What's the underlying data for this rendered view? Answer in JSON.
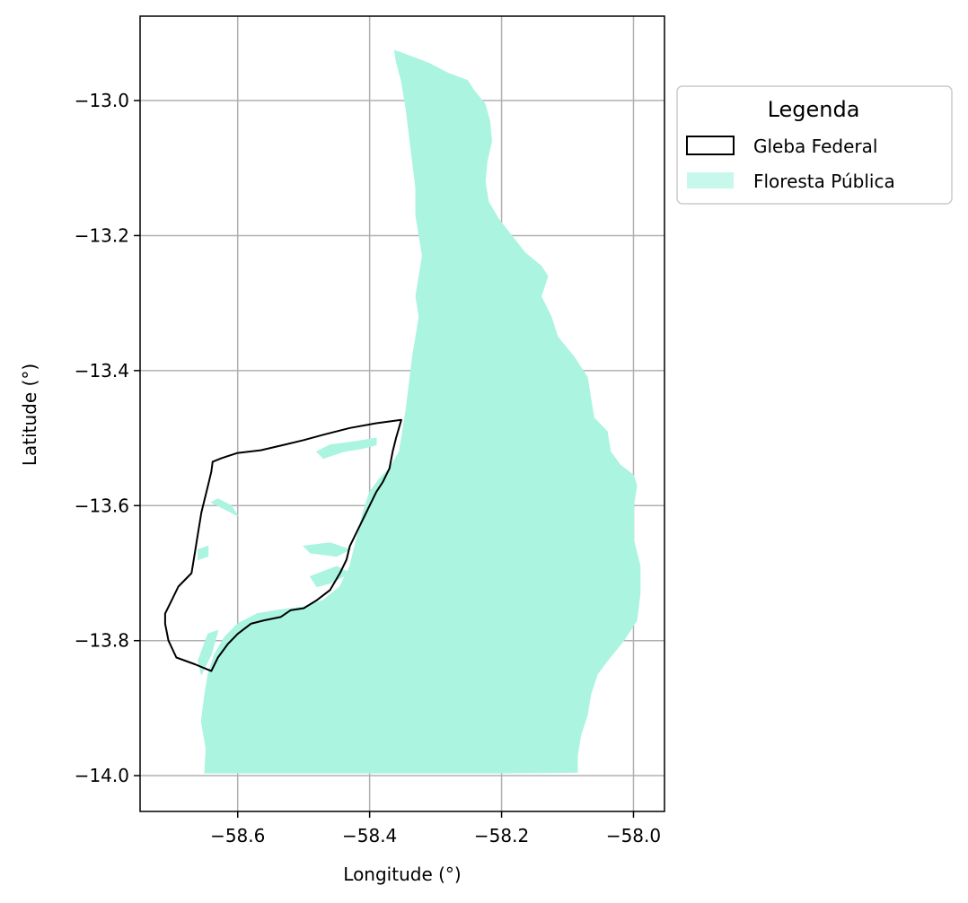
{
  "chart_data": {
    "type": "map",
    "xlabel": "Longitude (°)",
    "ylabel": "Latitude (°)",
    "xlim": [
      -58.748,
      -57.953
    ],
    "ylim": [
      -14.053,
      -12.875
    ],
    "xticks": [
      {
        "value": -58.6,
        "label": "−58.6"
      },
      {
        "value": -58.4,
        "label": "−58.4"
      },
      {
        "value": -58.2,
        "label": "−58.2"
      },
      {
        "value": -58.0,
        "label": "−58.0"
      }
    ],
    "yticks": [
      {
        "value": -13.0,
        "label": "−13.0"
      },
      {
        "value": -13.2,
        "label": "−13.2"
      },
      {
        "value": -13.4,
        "label": "−13.4"
      },
      {
        "value": -13.6,
        "label": "−13.6"
      },
      {
        "value": -13.8,
        "label": "−13.8"
      },
      {
        "value": -14.0,
        "label": "−14.0"
      }
    ],
    "grid": true,
    "legend": {
      "title": "Legenda",
      "placement": "outside-right-top",
      "entries": [
        {
          "label": "Gleba Federal",
          "style": "outline",
          "color": "#000000"
        },
        {
          "label": "Floresta Pública",
          "style": "fill",
          "color": "#aaf4e0"
        }
      ]
    },
    "colors": {
      "forest": "#aaf4e0",
      "gleba_edge": "#000000",
      "grid": "#b0b0b0"
    },
    "layers": {
      "floresta_publica": [
        [
          -58.362,
          -12.926
        ],
        [
          -58.35,
          -12.93
        ],
        [
          -58.31,
          -12.945
        ],
        [
          -58.28,
          -12.96
        ],
        [
          -58.252,
          -12.97
        ],
        [
          -58.242,
          -12.985
        ],
        [
          -58.225,
          -13.005
        ],
        [
          -58.218,
          -13.03
        ],
        [
          -58.215,
          -13.06
        ],
        [
          -58.222,
          -13.09
        ],
        [
          -58.225,
          -13.12
        ],
        [
          -58.22,
          -13.15
        ],
        [
          -58.205,
          -13.175
        ],
        [
          -58.185,
          -13.2
        ],
        [
          -58.165,
          -13.225
        ],
        [
          -58.14,
          -13.245
        ],
        [
          -58.13,
          -13.26
        ],
        [
          -58.14,
          -13.29
        ],
        [
          -58.125,
          -13.32
        ],
        [
          -58.115,
          -13.35
        ],
        [
          -58.09,
          -13.38
        ],
        [
          -58.07,
          -13.41
        ],
        [
          -58.065,
          -13.44
        ],
        [
          -58.06,
          -13.47
        ],
        [
          -58.04,
          -13.49
        ],
        [
          -58.035,
          -13.52
        ],
        [
          -58.02,
          -13.54
        ],
        [
          -58.0,
          -13.555
        ],
        [
          -57.995,
          -13.57
        ],
        [
          -58.0,
          -13.6
        ],
        [
          -58.0,
          -13.65
        ],
        [
          -57.99,
          -13.69
        ],
        [
          -57.99,
          -13.73
        ],
        [
          -57.995,
          -13.77
        ],
        [
          -58.015,
          -13.8
        ],
        [
          -58.04,
          -13.83
        ],
        [
          -58.055,
          -13.85
        ],
        [
          -58.065,
          -13.88
        ],
        [
          -58.07,
          -13.91
        ],
        [
          -58.08,
          -13.94
        ],
        [
          -58.085,
          -13.97
        ],
        [
          -58.085,
          -13.995
        ],
        [
          -58.2,
          -13.996
        ],
        [
          -58.3,
          -13.996
        ],
        [
          -58.45,
          -13.996
        ],
        [
          -58.6,
          -13.996
        ],
        [
          -58.65,
          -13.996
        ],
        [
          -58.648,
          -13.96
        ],
        [
          -58.655,
          -13.92
        ],
        [
          -58.65,
          -13.88
        ],
        [
          -58.645,
          -13.85
        ],
        [
          -58.635,
          -13.82
        ],
        [
          -58.62,
          -13.795
        ],
        [
          -58.6,
          -13.775
        ],
        [
          -58.57,
          -13.76
        ],
        [
          -58.54,
          -13.755
        ],
        [
          -58.5,
          -13.75
        ],
        [
          -58.47,
          -13.74
        ],
        [
          -58.445,
          -13.72
        ],
        [
          -58.43,
          -13.69
        ],
        [
          -58.42,
          -13.65
        ],
        [
          -58.41,
          -13.61
        ],
        [
          -58.4,
          -13.58
        ],
        [
          -58.385,
          -13.56
        ],
        [
          -58.37,
          -13.545
        ],
        [
          -58.355,
          -13.52
        ],
        [
          -58.35,
          -13.49
        ],
        [
          -58.345,
          -13.46
        ],
        [
          -58.34,
          -13.42
        ],
        [
          -58.335,
          -13.38
        ],
        [
          -58.33,
          -13.35
        ],
        [
          -58.325,
          -13.32
        ],
        [
          -58.33,
          -13.29
        ],
        [
          -58.325,
          -13.26
        ],
        [
          -58.32,
          -13.23
        ],
        [
          -58.325,
          -13.2
        ],
        [
          -58.33,
          -13.17
        ],
        [
          -58.33,
          -13.13
        ],
        [
          -58.335,
          -13.09
        ],
        [
          -58.34,
          -13.05
        ],
        [
          -58.345,
          -13.01
        ],
        [
          -58.352,
          -12.97
        ],
        [
          -58.36,
          -12.94
        ]
      ],
      "floresta_patches": [
        [
          [
            -58.39,
            -13.5
          ],
          [
            -58.42,
            -13.505
          ],
          [
            -58.46,
            -13.51
          ],
          [
            -58.48,
            -13.52
          ],
          [
            -58.47,
            -13.53
          ],
          [
            -58.44,
            -13.52
          ],
          [
            -58.41,
            -13.515
          ],
          [
            -58.39,
            -13.51
          ]
        ],
        [
          [
            -58.64,
            -13.595
          ],
          [
            -58.62,
            -13.605
          ],
          [
            -58.6,
            -13.615
          ],
          [
            -58.61,
            -13.6
          ],
          [
            -58.63,
            -13.59
          ]
        ],
        [
          [
            -58.5,
            -13.66
          ],
          [
            -58.46,
            -13.655
          ],
          [
            -58.43,
            -13.665
          ],
          [
            -58.45,
            -13.675
          ],
          [
            -58.49,
            -13.67
          ]
        ],
        [
          [
            -58.49,
            -13.705
          ],
          [
            -58.45,
            -13.69
          ],
          [
            -58.43,
            -13.7
          ],
          [
            -58.46,
            -13.715
          ],
          [
            -58.48,
            -13.72
          ]
        ],
        [
          [
            -58.66,
            -13.665
          ],
          [
            -58.645,
            -13.66
          ],
          [
            -58.645,
            -13.675
          ],
          [
            -58.66,
            -13.68
          ]
        ],
        [
          [
            -58.66,
            -13.83
          ],
          [
            -58.645,
            -13.79
          ],
          [
            -58.63,
            -13.785
          ],
          [
            -58.64,
            -13.82
          ],
          [
            -58.655,
            -13.85
          ]
        ]
      ],
      "gleba_federal": [
        [
          -58.352,
          -13.473
        ],
        [
          -58.39,
          -13.478
        ],
        [
          -58.43,
          -13.485
        ],
        [
          -58.47,
          -13.495
        ],
        [
          -58.5,
          -13.503
        ],
        [
          -58.53,
          -13.51
        ],
        [
          -58.565,
          -13.518
        ],
        [
          -58.6,
          -13.522
        ],
        [
          -58.61,
          -13.525
        ],
        [
          -58.625,
          -13.53
        ],
        [
          -58.638,
          -13.535
        ],
        [
          -58.64,
          -13.55
        ],
        [
          -58.645,
          -13.57
        ],
        [
          -58.65,
          -13.59
        ],
        [
          -58.655,
          -13.61
        ],
        [
          -58.66,
          -13.64
        ],
        [
          -58.665,
          -13.67
        ],
        [
          -58.67,
          -13.7
        ],
        [
          -58.69,
          -13.72
        ],
        [
          -58.7,
          -13.74
        ],
        [
          -58.71,
          -13.76
        ],
        [
          -58.71,
          -13.775
        ],
        [
          -58.705,
          -13.8
        ],
        [
          -58.693,
          -13.825
        ],
        [
          -58.665,
          -13.835
        ],
        [
          -58.64,
          -13.845
        ],
        [
          -58.63,
          -13.825
        ],
        [
          -58.615,
          -13.805
        ],
        [
          -58.6,
          -13.79
        ],
        [
          -58.58,
          -13.775
        ],
        [
          -58.56,
          -13.77
        ],
        [
          -58.535,
          -13.765
        ],
        [
          -58.52,
          -13.755
        ],
        [
          -58.5,
          -13.752
        ],
        [
          -58.48,
          -13.74
        ],
        [
          -58.46,
          -13.725
        ],
        [
          -58.445,
          -13.7
        ],
        [
          -58.435,
          -13.68
        ],
        [
          -58.43,
          -13.66
        ],
        [
          -58.42,
          -13.64
        ],
        [
          -58.41,
          -13.62
        ],
        [
          -58.4,
          -13.6
        ],
        [
          -58.39,
          -13.58
        ],
        [
          -58.38,
          -13.565
        ],
        [
          -58.37,
          -13.545
        ],
        [
          -58.365,
          -13.52
        ],
        [
          -58.36,
          -13.5
        ],
        [
          -58.352,
          -13.473
        ]
      ]
    }
  }
}
